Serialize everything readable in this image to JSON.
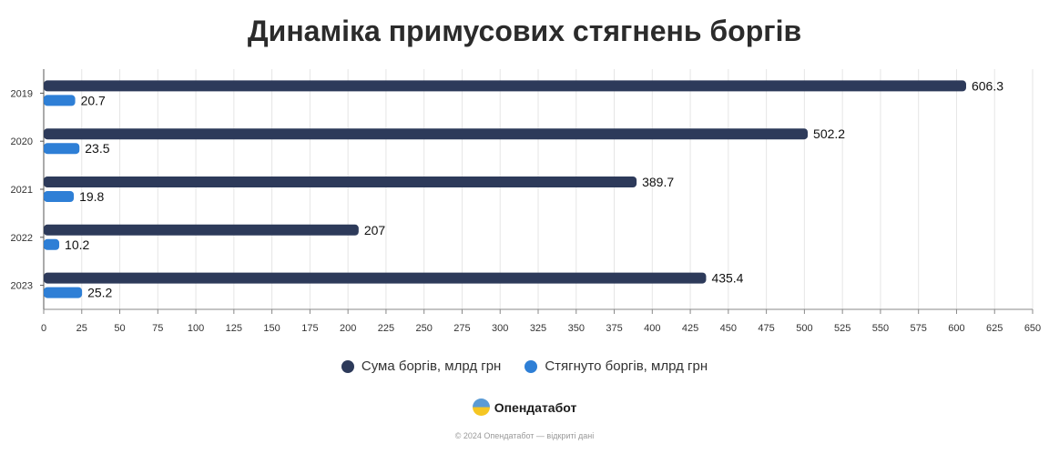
{
  "chart_data": {
    "type": "bar",
    "orientation": "horizontal",
    "title": "Динаміка примусових стягнень боргів",
    "categories": [
      "2019",
      "2020",
      "2021",
      "2022",
      "2023"
    ],
    "series": [
      {
        "name": "Сума боргів, млрд грн",
        "values": [
          606.3,
          502.2,
          389.7,
          207,
          435.4
        ],
        "color": "#2d3a5a"
      },
      {
        "name": "Стягнуто боргів, млрд грн",
        "values": [
          20.7,
          23.5,
          19.8,
          10.2,
          25.2
        ],
        "color": "#2e7fd6"
      }
    ],
    "data_labels": [
      [
        "606.3",
        "502.2",
        "389.7",
        "207",
        "435.4"
      ],
      [
        "20.7",
        "23.5",
        "19.8",
        "10.2",
        "25.2"
      ]
    ],
    "xlim": [
      0,
      650
    ],
    "xticks": [
      0,
      25,
      50,
      75,
      100,
      125,
      150,
      175,
      200,
      225,
      250,
      275,
      300,
      325,
      350,
      375,
      400,
      425,
      450,
      475,
      500,
      525,
      550,
      575,
      600,
      625,
      650
    ],
    "xlabel": "",
    "ylabel": "",
    "grid": true,
    "legend_position": "bottom"
  },
  "brand": {
    "name": "Опендатабот",
    "logo_icon": "opendatabot-logo-icon"
  },
  "footer": "© 2024 Опендатабот — відкриті дані"
}
